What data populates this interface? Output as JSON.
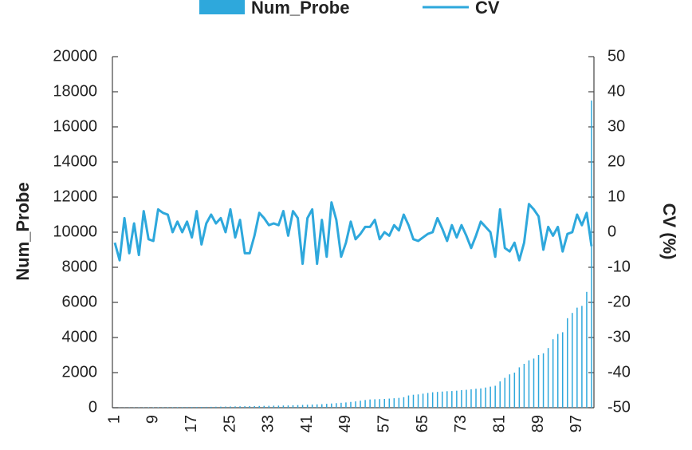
{
  "chart_data": {
    "type": "bar",
    "categories": [
      "1",
      null,
      null,
      null,
      null,
      null,
      null,
      null,
      "9",
      null,
      null,
      null,
      null,
      null,
      null,
      null,
      "17",
      null,
      null,
      null,
      null,
      null,
      null,
      null,
      "25",
      null,
      null,
      null,
      null,
      null,
      null,
      null,
      "33",
      null,
      null,
      null,
      null,
      null,
      null,
      null,
      "41",
      null,
      null,
      null,
      null,
      null,
      null,
      null,
      "49",
      null,
      null,
      null,
      null,
      null,
      null,
      null,
      "57",
      null,
      null,
      null,
      null,
      null,
      null,
      null,
      "65",
      null,
      null,
      null,
      null,
      null,
      null,
      null,
      "73",
      null,
      null,
      null,
      null,
      null,
      null,
      null,
      "81",
      null,
      null,
      null,
      null,
      null,
      null,
      null,
      "89",
      null,
      null,
      null,
      null,
      null,
      null,
      null,
      "97",
      null,
      null,
      null
    ],
    "series": [
      {
        "name": "Num_Probe",
        "type": "bar",
        "color": "#2ea8dc",
        "values": [
          5,
          8,
          10,
          12,
          14,
          16,
          18,
          20,
          22,
          24,
          26,
          28,
          30,
          32,
          35,
          38,
          40,
          42,
          45,
          48,
          50,
          55,
          60,
          65,
          70,
          75,
          80,
          85,
          90,
          95,
          100,
          105,
          110,
          115,
          120,
          125,
          130,
          140,
          150,
          160,
          170,
          180,
          190,
          200,
          220,
          240,
          260,
          280,
          300,
          330,
          360,
          400,
          440,
          470,
          480,
          490,
          500,
          520,
          540,
          560,
          600,
          700,
          740,
          760,
          800,
          840,
          880,
          900,
          920,
          940,
          950,
          970,
          1000,
          1020,
          1050,
          1080,
          1100,
          1150,
          1200,
          1250,
          1500,
          1700,
          1900,
          2000,
          2300,
          2500,
          2700,
          2800,
          3000,
          3100,
          3400,
          3900,
          4200,
          4300,
          5100,
          5400,
          5700,
          5800,
          6600,
          17500
        ]
      },
      {
        "name": "CV",
        "type": "line",
        "axis": "y2",
        "color": "#2ea8dc",
        "values": [
          -3,
          -8,
          4,
          -6,
          2.5,
          -6.5,
          6,
          -2,
          -2.5,
          6.5,
          5.5,
          5,
          0,
          3,
          0,
          3,
          -1.5,
          6,
          -3.5,
          2.5,
          5,
          2.5,
          4,
          0,
          6.5,
          -1.5,
          3.5,
          -6,
          -6,
          -1,
          5.5,
          4,
          2,
          2.5,
          2,
          6,
          -1,
          6,
          4,
          -9,
          4,
          6.5,
          -9,
          3.5,
          -7,
          8.5,
          3.5,
          -7,
          -3,
          3,
          -2,
          -0.5,
          1.5,
          1.5,
          3.5,
          -2,
          0,
          -1,
          2,
          0.5,
          5,
          2,
          -2,
          -2.5,
          -1.5,
          -0.5,
          0,
          4,
          1,
          -2.5,
          2,
          -1.5,
          2,
          -1,
          -4.5,
          -1,
          3,
          1.5,
          0,
          -7,
          6.5,
          -4.5,
          -5.5,
          -3,
          -8,
          -3,
          8,
          6.5,
          4.5,
          -5,
          1.5,
          -1,
          1.5,
          -5.5,
          -0.5,
          0,
          5,
          2,
          5.5,
          -4
        ]
      }
    ],
    "ylabel": "Num_Probe",
    "y2label": "CV (%)",
    "ylim": [
      0,
      20000
    ],
    "yticks": [
      0,
      2000,
      4000,
      6000,
      8000,
      10000,
      12000,
      14000,
      16000,
      18000,
      20000
    ],
    "y2lim": [
      -50,
      50
    ],
    "y2ticks": [
      -50,
      -40,
      -30,
      -20,
      -10,
      0,
      10,
      20,
      30,
      40,
      50
    ],
    "legend": "top"
  }
}
